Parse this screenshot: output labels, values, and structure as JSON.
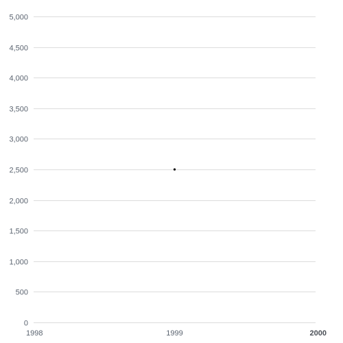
{
  "chart_data": {
    "type": "scatter",
    "title": "",
    "xlabel": "",
    "ylabel": "",
    "xlim": [
      1998,
      2000
    ],
    "ylim": [
      0,
      5000
    ],
    "x_ticks": [
      "1998",
      "1999",
      "2000"
    ],
    "y_ticks": [
      "0",
      "500",
      "1,000",
      "1,500",
      "2,000",
      "2,500",
      "3,000",
      "3,500",
      "4,000",
      "4,500",
      "5,000"
    ],
    "bold_x_tick": "2000",
    "grid": true,
    "series": [
      {
        "x": [
          1999
        ],
        "y": [
          2500
        ],
        "color": "#000000"
      }
    ]
  }
}
